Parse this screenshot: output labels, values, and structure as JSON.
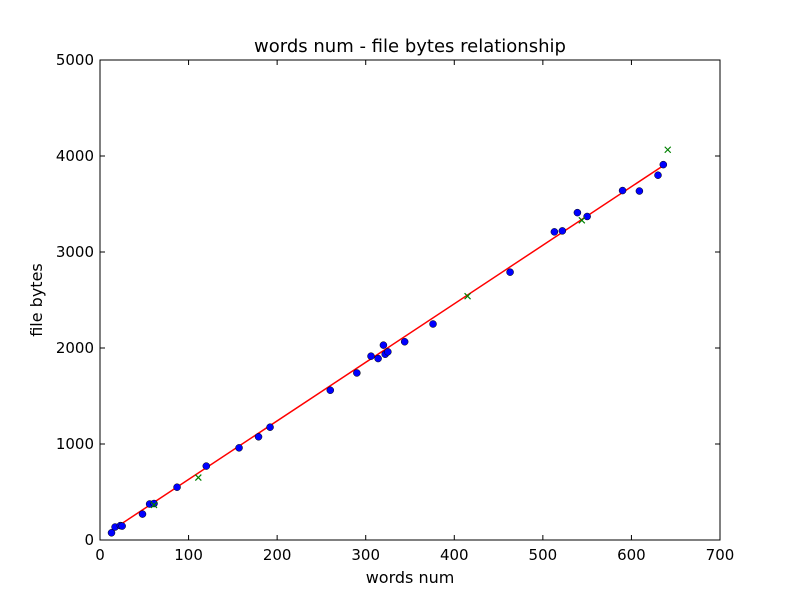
{
  "chart_data": {
    "type": "scatter",
    "title": "words num - file bytes relationship",
    "xlabel": "words num",
    "ylabel": "file bytes",
    "xlim": [
      0,
      700
    ],
    "ylim": [
      0,
      5000
    ],
    "xticks": [
      0,
      100,
      200,
      300,
      400,
      500,
      600,
      700
    ],
    "yticks": [
      0,
      1000,
      2000,
      3000,
      4000,
      5000
    ],
    "grid": false,
    "legend": "none",
    "series": [
      {
        "marker": "circle",
        "color": "#0000ff",
        "points": [
          [
            13,
            75
          ],
          [
            17,
            135
          ],
          [
            23,
            150
          ],
          [
            25,
            145
          ],
          [
            48,
            270
          ],
          [
            56,
            375
          ],
          [
            61,
            380
          ],
          [
            87,
            550
          ],
          [
            120,
            770
          ],
          [
            157,
            960
          ],
          [
            179,
            1075
          ],
          [
            192,
            1175
          ],
          [
            260,
            1560
          ],
          [
            290,
            1740
          ],
          [
            306,
            1915
          ],
          [
            314,
            1890
          ],
          [
            320,
            2030
          ],
          [
            322,
            1935
          ],
          [
            325,
            1960
          ],
          [
            344,
            2065
          ],
          [
            376,
            2250
          ],
          [
            463,
            2790
          ],
          [
            513,
            3210
          ],
          [
            522,
            3220
          ],
          [
            539,
            3410
          ],
          [
            550,
            3370
          ],
          [
            590,
            3640
          ],
          [
            609,
            3635
          ],
          [
            630,
            3800
          ],
          [
            636,
            3910
          ]
        ]
      },
      {
        "marker": "x",
        "color": "#008000",
        "points": [
          [
            61,
            365
          ],
          [
            111,
            650
          ],
          [
            415,
            2540
          ],
          [
            544,
            3330
          ],
          [
            641,
            4065
          ]
        ]
      },
      {
        "marker": "line",
        "color": "#ff0000",
        "points": [
          [
            13,
            100
          ],
          [
            636,
            3900
          ]
        ]
      }
    ]
  }
}
